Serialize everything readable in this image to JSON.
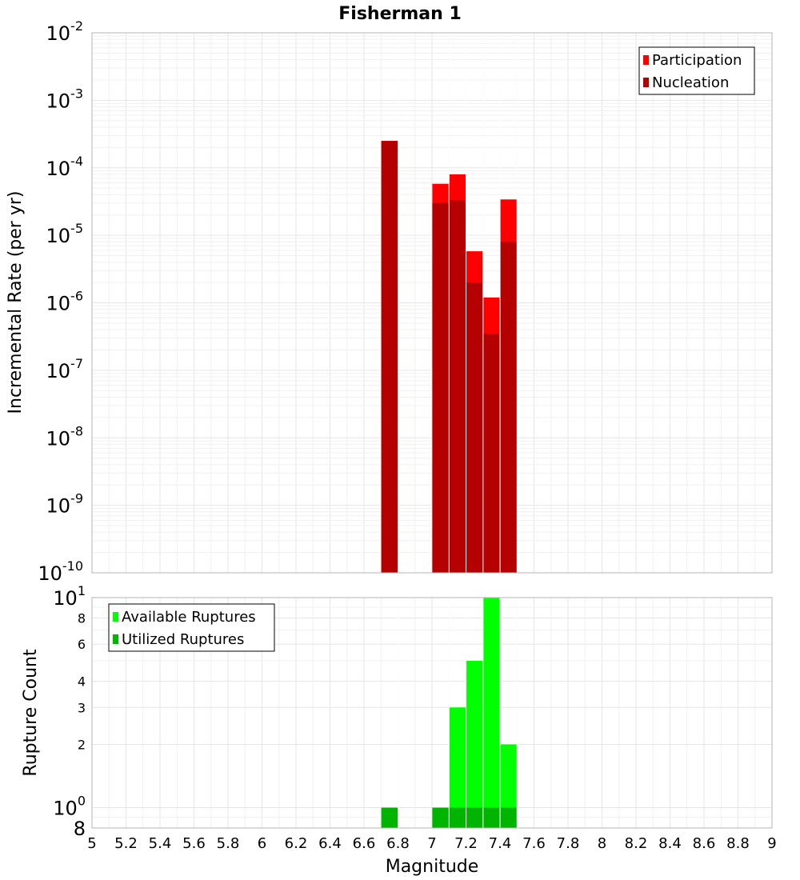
{
  "title": "Fisherman 1",
  "chart_data": [
    {
      "type": "bar",
      "ylabel": "Incremental Rate (per yr)",
      "y_scale": "log",
      "ylim": [
        1e-10,
        0.01
      ],
      "xlim": [
        5,
        9
      ],
      "grid": true,
      "legend_placement": "top-right",
      "y_tick_labels": [
        {
          "base": "10",
          "exp": "-2"
        },
        {
          "base": "10",
          "exp": "-3"
        },
        {
          "base": "10",
          "exp": "-4"
        },
        {
          "base": "10",
          "exp": "-5"
        },
        {
          "base": "10",
          "exp": "-6"
        },
        {
          "base": "10",
          "exp": "-7"
        },
        {
          "base": "10",
          "exp": "-8"
        },
        {
          "base": "10",
          "exp": "-9"
        },
        {
          "base": "10",
          "exp": "-10"
        }
      ],
      "series": [
        {
          "name": "Participation",
          "color": "#ff0000",
          "x": [
            6.75,
            7.05,
            7.15,
            7.25,
            7.35,
            7.45
          ],
          "values": [
            0.00025,
            5.8e-05,
            8e-05,
            5.8e-06,
            1.2e-06,
            3.4e-05
          ]
        },
        {
          "name": "Nucleation",
          "color": "#b40000",
          "x": [
            6.75,
            7.05,
            7.15,
            7.25,
            7.35,
            7.45
          ],
          "values": [
            0.00025,
            3e-05,
            3.3e-05,
            2e-06,
            3.5e-07,
            8e-06
          ]
        }
      ]
    },
    {
      "type": "bar",
      "ylabel": "Rupture Count",
      "xlabel": "Magnitude",
      "y_scale": "log",
      "ylim": [
        0.8,
        10
      ],
      "xlim": [
        5,
        9
      ],
      "grid": true,
      "legend_placement": "top-left",
      "x_ticks": [
        "5",
        "5.2",
        "5.4",
        "5.6",
        "5.8",
        "6",
        "6.2",
        "6.4",
        "6.6",
        "6.8",
        "7",
        "7.2",
        "7.4",
        "7.6",
        "7.8",
        "8",
        "8.2",
        "8.4",
        "8.6",
        "8.8",
        "9"
      ],
      "y_tick_labels": [
        {
          "value": 10,
          "base": "10",
          "exp": "1"
        },
        {
          "value": 8,
          "base": "8",
          "exp": ""
        },
        {
          "value": 6,
          "base": "6",
          "exp": ""
        },
        {
          "value": 4,
          "base": "4",
          "exp": ""
        },
        {
          "value": 3,
          "base": "3",
          "exp": ""
        },
        {
          "value": 2,
          "base": "2",
          "exp": ""
        },
        {
          "value": 1,
          "base": "10",
          "exp": "0"
        },
        {
          "value": 0.8,
          "base": "8",
          "exp": ""
        }
      ],
      "series": [
        {
          "name": "Available Ruptures",
          "color": "#00ff00",
          "x": [
            6.75,
            7.05,
            7.15,
            7.25,
            7.35,
            7.45
          ],
          "values": [
            1,
            1,
            3,
            5,
            10,
            2
          ]
        },
        {
          "name": "Utilized Ruptures",
          "color": "#00b400",
          "x": [
            6.75,
            7.05,
            7.15,
            7.25,
            7.35,
            7.45
          ],
          "values": [
            1,
            1,
            1,
            1,
            1,
            1
          ]
        }
      ]
    }
  ]
}
